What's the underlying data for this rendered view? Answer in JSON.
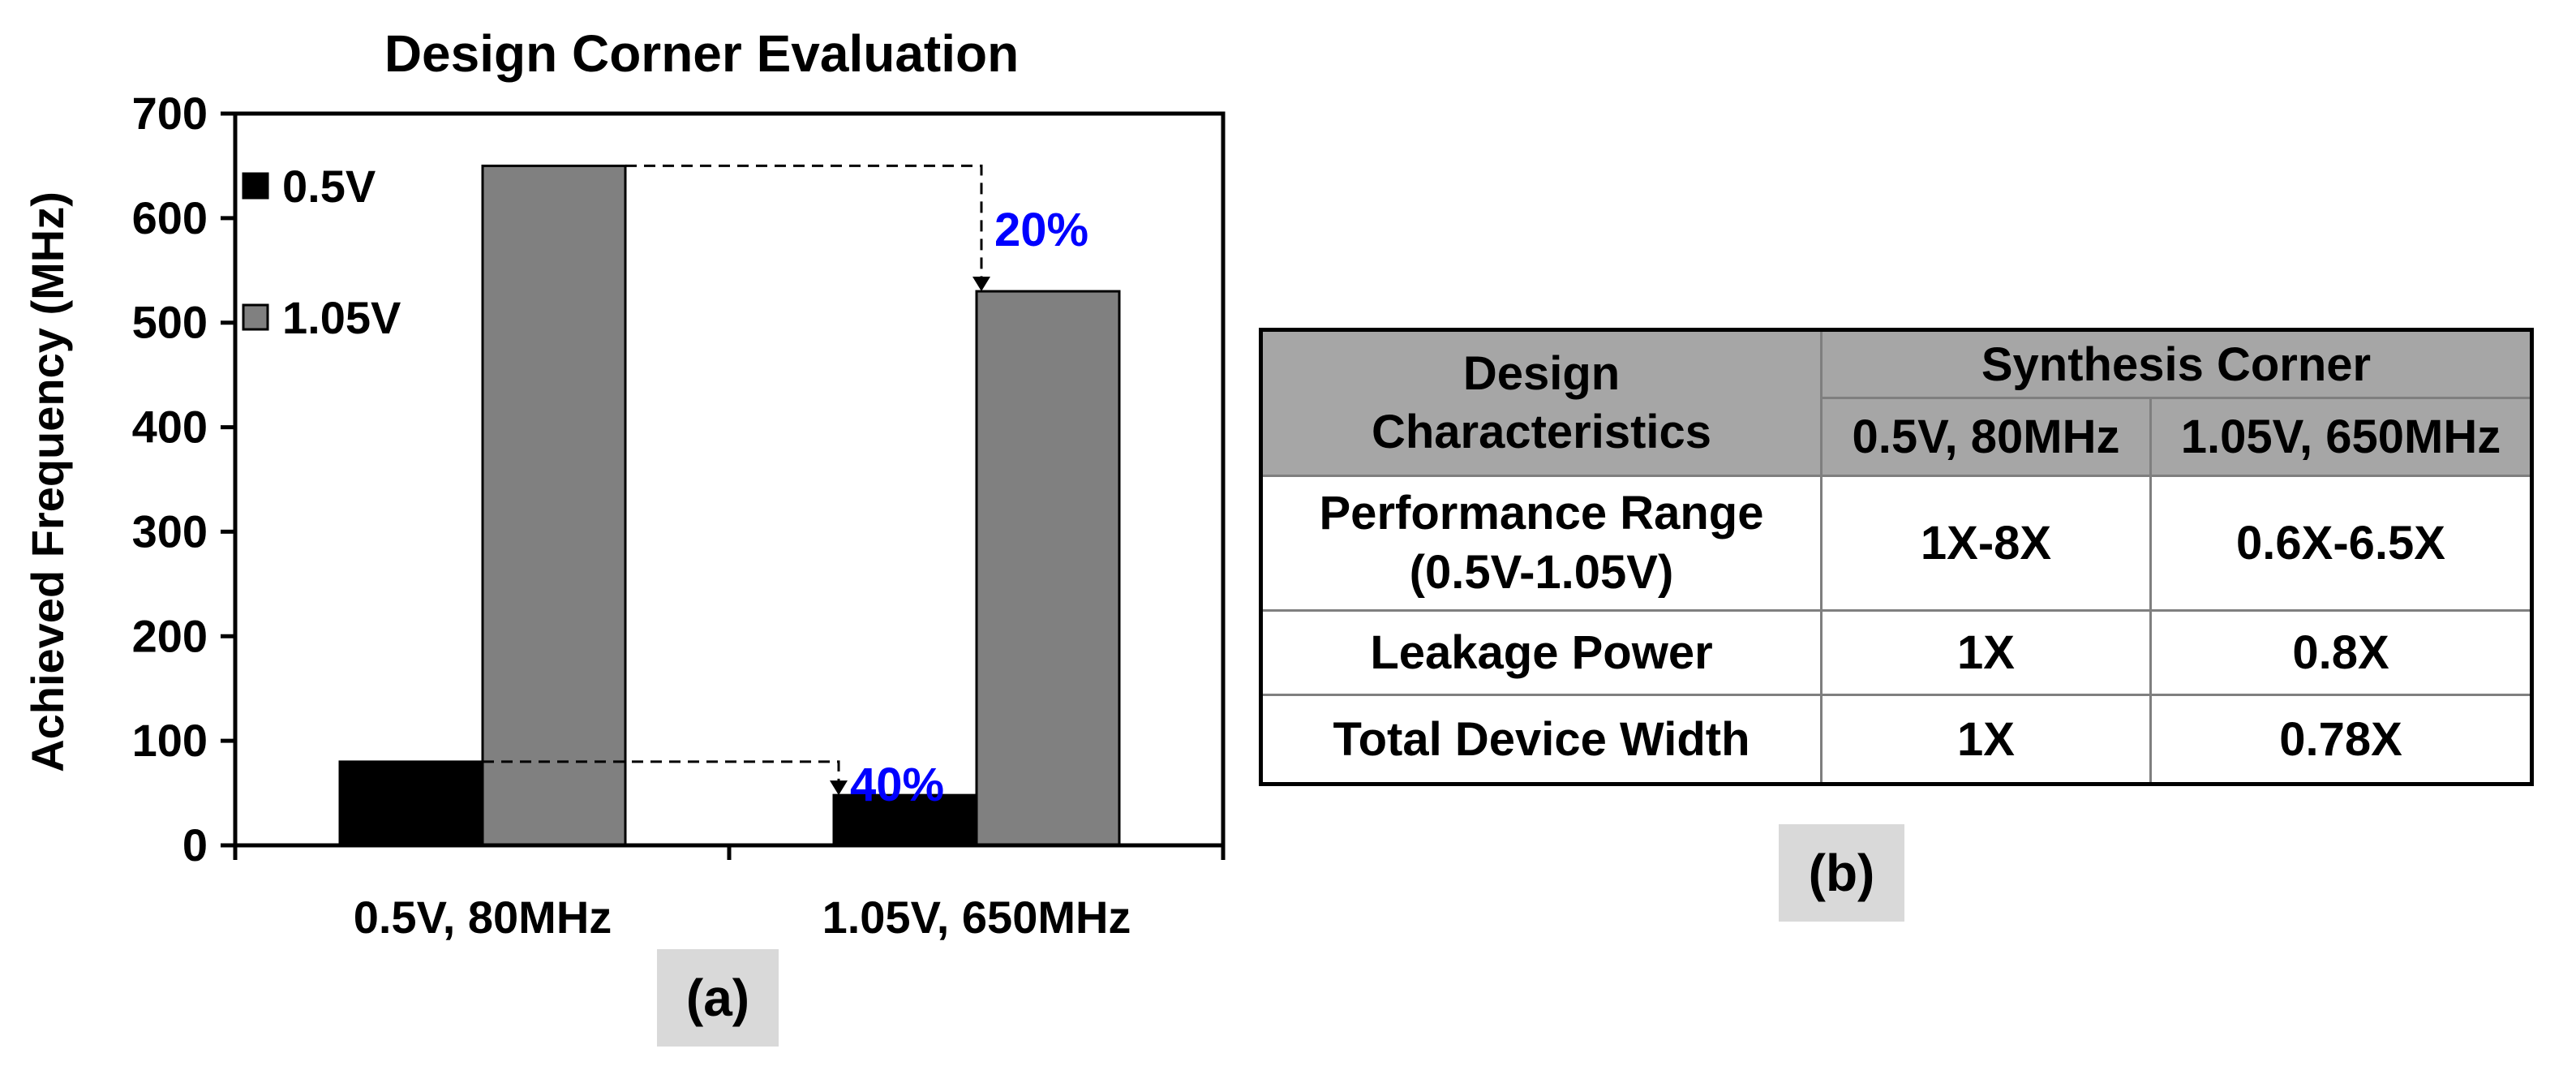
{
  "chart_data": {
    "type": "bar",
    "title": "Design Corner Evaluation",
    "xlabel": "",
    "ylabel": "Achieved Frequency (MHz)",
    "ylim": [
      0,
      700
    ],
    "yticks": [
      "0",
      "100",
      "200",
      "300",
      "400",
      "500",
      "600",
      "700"
    ],
    "categories": [
      "0.5V, 80MHz",
      "1.05V, 650MHz"
    ],
    "series": [
      {
        "name": "0.5V",
        "values": [
          80,
          48
        ],
        "color": "#000000"
      },
      {
        "name": "1.05V",
        "values": [
          650,
          530
        ],
        "color": "#808080"
      }
    ],
    "legend_position": "top-left",
    "annotations": [
      {
        "text": "20%",
        "color": "#0000ff"
      },
      {
        "text": "40%",
        "color": "#0000ff"
      }
    ],
    "grid": false
  },
  "panel_labels": {
    "a": "(a)",
    "b": "(b)"
  },
  "table": {
    "header_col1": "Design Characteristics",
    "header_col1_lines": [
      "Design",
      "Characteristics"
    ],
    "header_group": "Synthesis Corner",
    "header_sub": [
      "0.5V, 80MHz",
      "1.05V, 650MHz"
    ],
    "rows": [
      {
        "label_lines": [
          "Performance Range",
          "(0.5V-1.05V)"
        ],
        "values": [
          "1X-8X",
          "0.6X-6.5X"
        ]
      },
      {
        "label_lines": [
          "Leakage Power"
        ],
        "values": [
          "1X",
          "0.8X"
        ]
      },
      {
        "label_lines": [
          "Total Device Width"
        ],
        "values": [
          "1X",
          "0.78X"
        ]
      }
    ]
  }
}
